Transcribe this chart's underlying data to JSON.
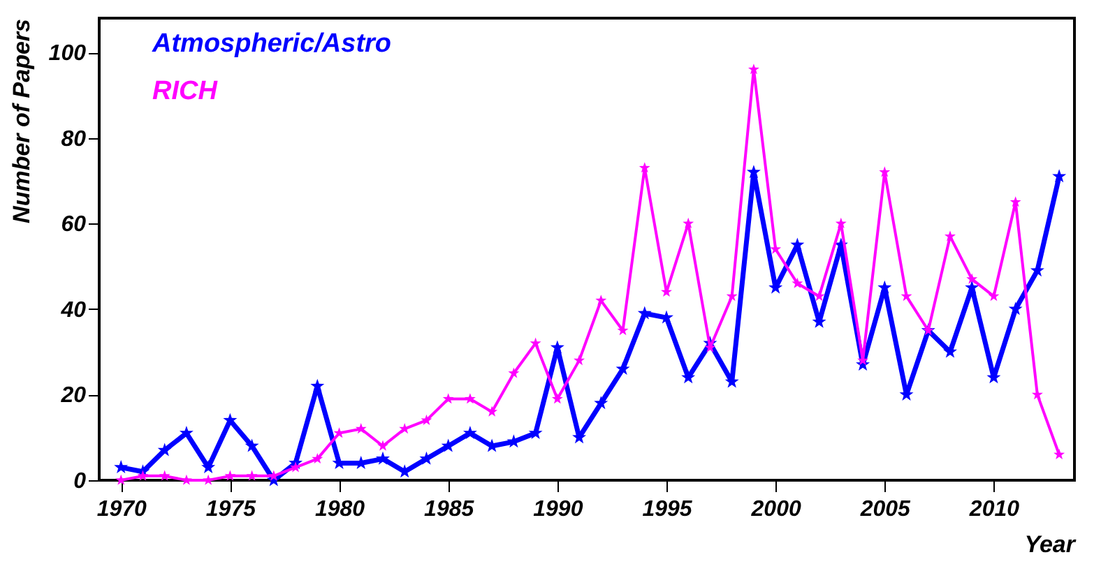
{
  "chart_data": {
    "type": "line",
    "xlabel": "Year",
    "ylabel": "Number of Papers",
    "x": [
      1970,
      1971,
      1972,
      1973,
      1974,
      1975,
      1976,
      1977,
      1978,
      1979,
      1980,
      1981,
      1982,
      1983,
      1984,
      1985,
      1986,
      1987,
      1988,
      1989,
      1990,
      1991,
      1992,
      1993,
      1994,
      1995,
      1996,
      1997,
      1998,
      1999,
      2000,
      2001,
      2002,
      2003,
      2004,
      2005,
      2006,
      2007,
      2008,
      2009,
      2010,
      2011,
      2012,
      2013
    ],
    "series": [
      {
        "name": "Atmospheric/Astro",
        "color": "#0000ff",
        "values": [
          3,
          2,
          7,
          11,
          3,
          14,
          8,
          0,
          4,
          22,
          4,
          4,
          5,
          2,
          5,
          8,
          11,
          8,
          9,
          11,
          31,
          10,
          18,
          26,
          39,
          38,
          24,
          32,
          23,
          72,
          45,
          55,
          37,
          55,
          27,
          45,
          20,
          35,
          30,
          45,
          24,
          40,
          49,
          71
        ]
      },
      {
        "name": "RICH",
        "color": "#ff00ff",
        "values": [
          0,
          1,
          1,
          0,
          0,
          1,
          1,
          1,
          3,
          5,
          11,
          12,
          8,
          12,
          14,
          19,
          19,
          16,
          25,
          32,
          19,
          28,
          42,
          35,
          73,
          44,
          60,
          31,
          43,
          96,
          54,
          46,
          43,
          60,
          28,
          72,
          43,
          35,
          57,
          47,
          43,
          65,
          20,
          6
        ]
      }
    ],
    "xlim": [
      1969,
      2013.7
    ],
    "xticks": [
      1970,
      1975,
      1980,
      1985,
      1990,
      1995,
      2000,
      2005,
      2010
    ],
    "ylim": [
      0,
      108
    ],
    "yticks": [
      0,
      20,
      40,
      60,
      80,
      100
    ],
    "legend": "top left",
    "marker": "star",
    "line_style": "solid",
    "grid": false
  }
}
